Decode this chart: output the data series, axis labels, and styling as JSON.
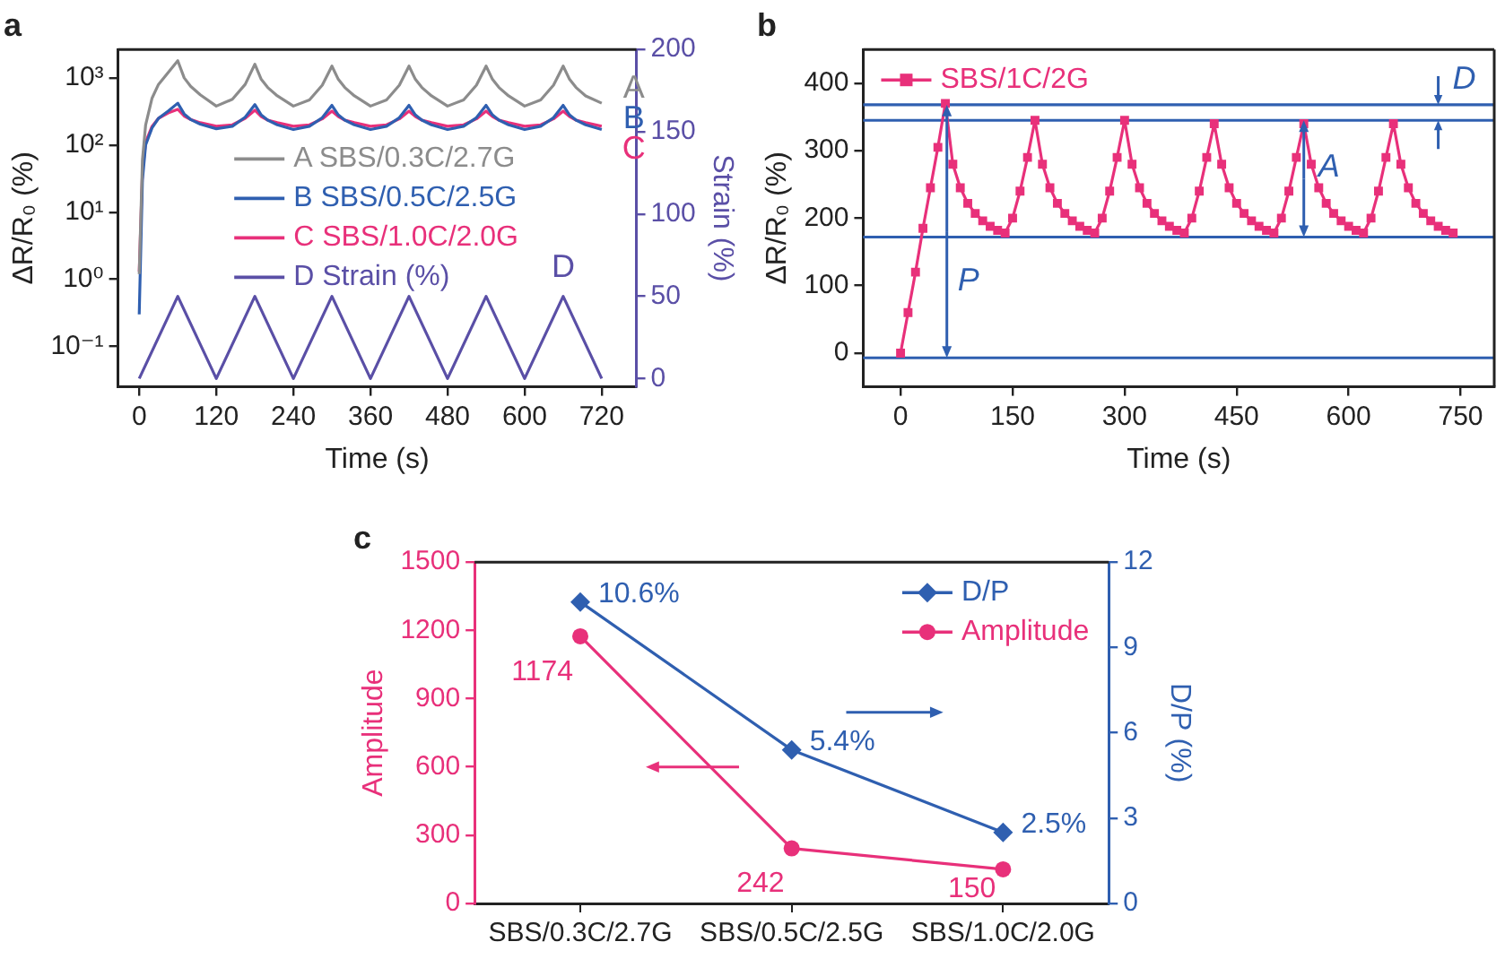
{
  "chart_data": [
    {
      "type": "line",
      "title": "a",
      "xlabel": "Time (s)",
      "ylabel": "ΔR/R₀ (%)",
      "y2label": "Strain (%)",
      "log": "y",
      "legend": "center",
      "grid": false,
      "marker": "none",
      "x": [
        0,
        5,
        10,
        20,
        30,
        45,
        60,
        70,
        80,
        95,
        120,
        145,
        165,
        180,
        190,
        200,
        215,
        240,
        265,
        285,
        300,
        310,
        320,
        335,
        360,
        385,
        405,
        420,
        430,
        440,
        455,
        480,
        505,
        525,
        540,
        550,
        560,
        575,
        600,
        625,
        645,
        660,
        670,
        680,
        695,
        720
      ],
      "xlim": [
        -33,
        774
      ],
      "xticks": [
        0,
        120,
        240,
        360,
        480,
        600,
        720
      ],
      "ylim": [
        0.025,
        2650
      ],
      "yticks": [
        {
          "value": 0.1,
          "label": "10⁻¹"
        },
        {
          "value": 1,
          "label": "10⁰"
        },
        {
          "value": 10,
          "label": "10¹"
        },
        {
          "value": 100,
          "label": "10²"
        },
        {
          "value": 1000,
          "label": "10³"
        }
      ],
      "y2lim": [
        -5,
        200
      ],
      "y2ticks": [
        0,
        50,
        100,
        150,
        200
      ],
      "annotations": [
        "A",
        "B",
        "C",
        "D"
      ],
      "series": [
        {
          "name": "A SBS/0.3C/2.7G",
          "color": "#8c8c8c",
          "values": [
            1.2,
            60,
            200,
            500,
            800,
            1200,
            1800,
            1000,
            750,
            560,
            380,
            480,
            800,
            1600,
            950,
            720,
            540,
            380,
            470,
            780,
            1500,
            950,
            720,
            540,
            380,
            470,
            780,
            1500,
            950,
            720,
            540,
            380,
            470,
            780,
            1500,
            950,
            720,
            540,
            380,
            470,
            780,
            1500,
            950,
            720,
            540,
            420
          ]
        },
        {
          "name": "B SBS/0.5C/2.5G",
          "color": "#2f5fb0",
          "values": [
            0.3,
            30,
            100,
            180,
            250,
            320,
            420,
            290,
            240,
            205,
            175,
            190,
            260,
            400,
            280,
            235,
            200,
            170,
            190,
            255,
            390,
            280,
            235,
            200,
            170,
            190,
            255,
            390,
            280,
            235,
            200,
            170,
            190,
            255,
            390,
            280,
            235,
            200,
            170,
            190,
            255,
            390,
            280,
            235,
            200,
            170
          ]
        },
        {
          "name": "C SBS/1.0C/2.0G",
          "color": "#e8307a",
          "values": [
            1.3,
            40,
            110,
            190,
            250,
            300,
            340,
            270,
            240,
            215,
            190,
            200,
            250,
            330,
            265,
            235,
            215,
            190,
            200,
            245,
            320,
            265,
            235,
            215,
            190,
            200,
            245,
            320,
            265,
            235,
            215,
            190,
            200,
            245,
            320,
            265,
            235,
            215,
            190,
            200,
            245,
            320,
            265,
            235,
            215,
            190
          ]
        },
        {
          "name": "D Strain (%)",
          "color": "#5a4fa6",
          "axis": "y2",
          "x": [
            0,
            60,
            120,
            180,
            240,
            300,
            360,
            420,
            480,
            540,
            600,
            660,
            720
          ],
          "values": [
            0,
            50,
            0,
            50,
            0,
            50,
            0,
            50,
            0,
            50,
            0,
            50,
            0
          ]
        }
      ]
    },
    {
      "type": "line",
      "title": "b",
      "xlabel": "Time (s)",
      "ylabel": "ΔR/R₀ (%)",
      "legend": "top left",
      "grid": false,
      "marker": "square",
      "x": [
        0,
        10,
        20,
        30,
        40,
        50,
        60,
        70,
        80,
        90,
        100,
        110,
        120,
        130,
        140,
        150,
        160,
        170,
        180,
        190,
        200,
        210,
        220,
        230,
        240,
        250,
        260,
        270,
        280,
        290,
        300,
        310,
        320,
        330,
        340,
        350,
        360,
        370,
        380,
        390,
        400,
        410,
        420,
        430,
        440,
        450,
        460,
        470,
        480,
        490,
        500,
        510,
        520,
        530,
        540,
        550,
        560,
        570,
        580,
        590,
        600,
        610,
        620,
        630,
        640,
        650,
        660,
        670,
        680,
        690,
        700,
        710,
        720,
        730,
        740
      ],
      "xlim": [
        -50,
        795
      ],
      "xticks": [
        0,
        150,
        300,
        450,
        600,
        750
      ],
      "ylim": [
        -50,
        450
      ],
      "yticks": [
        0,
        100,
        200,
        300,
        400
      ],
      "ref_lines": [
        {
          "axis": "y",
          "value": 368,
          "color": "#2f5fb0"
        },
        {
          "axis": "y",
          "value": 345,
          "color": "#2f5fb0"
        },
        {
          "axis": "y",
          "value": 172,
          "color": "#2f5fb0"
        },
        {
          "axis": "y",
          "value": -7,
          "color": "#2f5fb0"
        }
      ],
      "annotations": [
        {
          "text": "P",
          "x": 62,
          "y": 368
        },
        {
          "text": "A",
          "x": 540,
          "y": 345
        },
        {
          "text": "D",
          "x": 720,
          "y": 368
        }
      ],
      "series": [
        {
          "name": "SBS/1C/2G",
          "color": "#e8307a",
          "values": [
            0,
            60,
            120,
            185,
            245,
            305,
            370,
            280,
            245,
            222,
            207,
            196,
            188,
            182,
            178,
            200,
            240,
            290,
            345,
            280,
            245,
            222,
            207,
            196,
            188,
            182,
            178,
            200,
            240,
            290,
            345,
            280,
            245,
            222,
            207,
            196,
            188,
            182,
            178,
            200,
            240,
            290,
            340,
            280,
            245,
            222,
            207,
            196,
            188,
            182,
            178,
            200,
            240,
            290,
            340,
            280,
            245,
            222,
            207,
            196,
            188,
            182,
            178,
            200,
            240,
            290,
            340,
            280,
            245,
            222,
            207,
            196,
            188,
            182,
            178
          ]
        }
      ]
    },
    {
      "type": "line",
      "title": "c",
      "ylabel": "Amplitude",
      "y2label": "D/P (%)",
      "legend": "top right",
      "grid": false,
      "categories": [
        "SBS/0.3C/2.7G",
        "SBS/0.5C/2.5G",
        "SBS/1.0C/2.0G"
      ],
      "ylim": [
        0,
        1500
      ],
      "yticks": [
        0,
        300,
        600,
        900,
        1200,
        1500
      ],
      "y2lim": [
        0,
        12
      ],
      "y2ticks": [
        0,
        3,
        6,
        9,
        12
      ],
      "series": [
        {
          "name": "D/P",
          "color": "#2f5fb0",
          "axis": "y2",
          "marker": "diamond",
          "values": [
            10.6,
            5.4,
            2.5
          ],
          "value_labels": [
            "10.6%",
            "5.4%",
            "2.5%"
          ]
        },
        {
          "name": "Amplitude",
          "color": "#e8307a",
          "marker": "circle",
          "values": [
            1174,
            242,
            150
          ],
          "value_labels": [
            "1174",
            "242",
            "150"
          ]
        }
      ]
    }
  ]
}
